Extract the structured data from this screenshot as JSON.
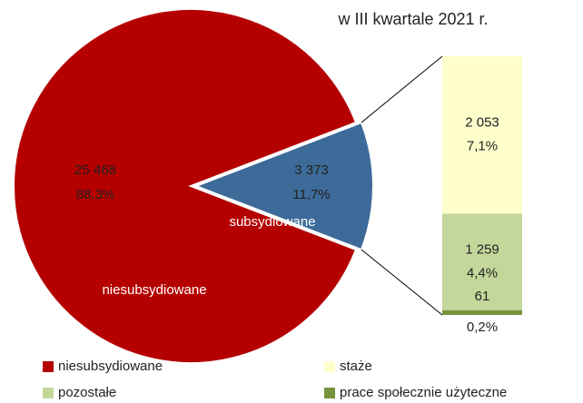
{
  "chart_data": {
    "type": "pie",
    "title": "w III kwartale 2021 r.",
    "categories": [
      "niesubsydiowane",
      "subsydiowane"
    ],
    "values": [
      25468,
      3373
    ],
    "value_labels": [
      "25 468",
      "3 373"
    ],
    "percent_labels": [
      "88,3%",
      "11,7%"
    ],
    "colors": [
      "#b50000",
      "#3d6b99"
    ],
    "breakdown": {
      "categories": [
        "staże",
        "pozostałe",
        "prace społecznie użyteczne"
      ],
      "values": [
        2053,
        1259,
        61
      ],
      "value_labels": [
        "2 053",
        "1 259",
        "61"
      ],
      "percent_labels": [
        "7,1%",
        "4,4%",
        "0,2%"
      ],
      "colors": [
        "#ffffcc",
        "#c4d79b",
        "#77933c"
      ]
    }
  }
}
